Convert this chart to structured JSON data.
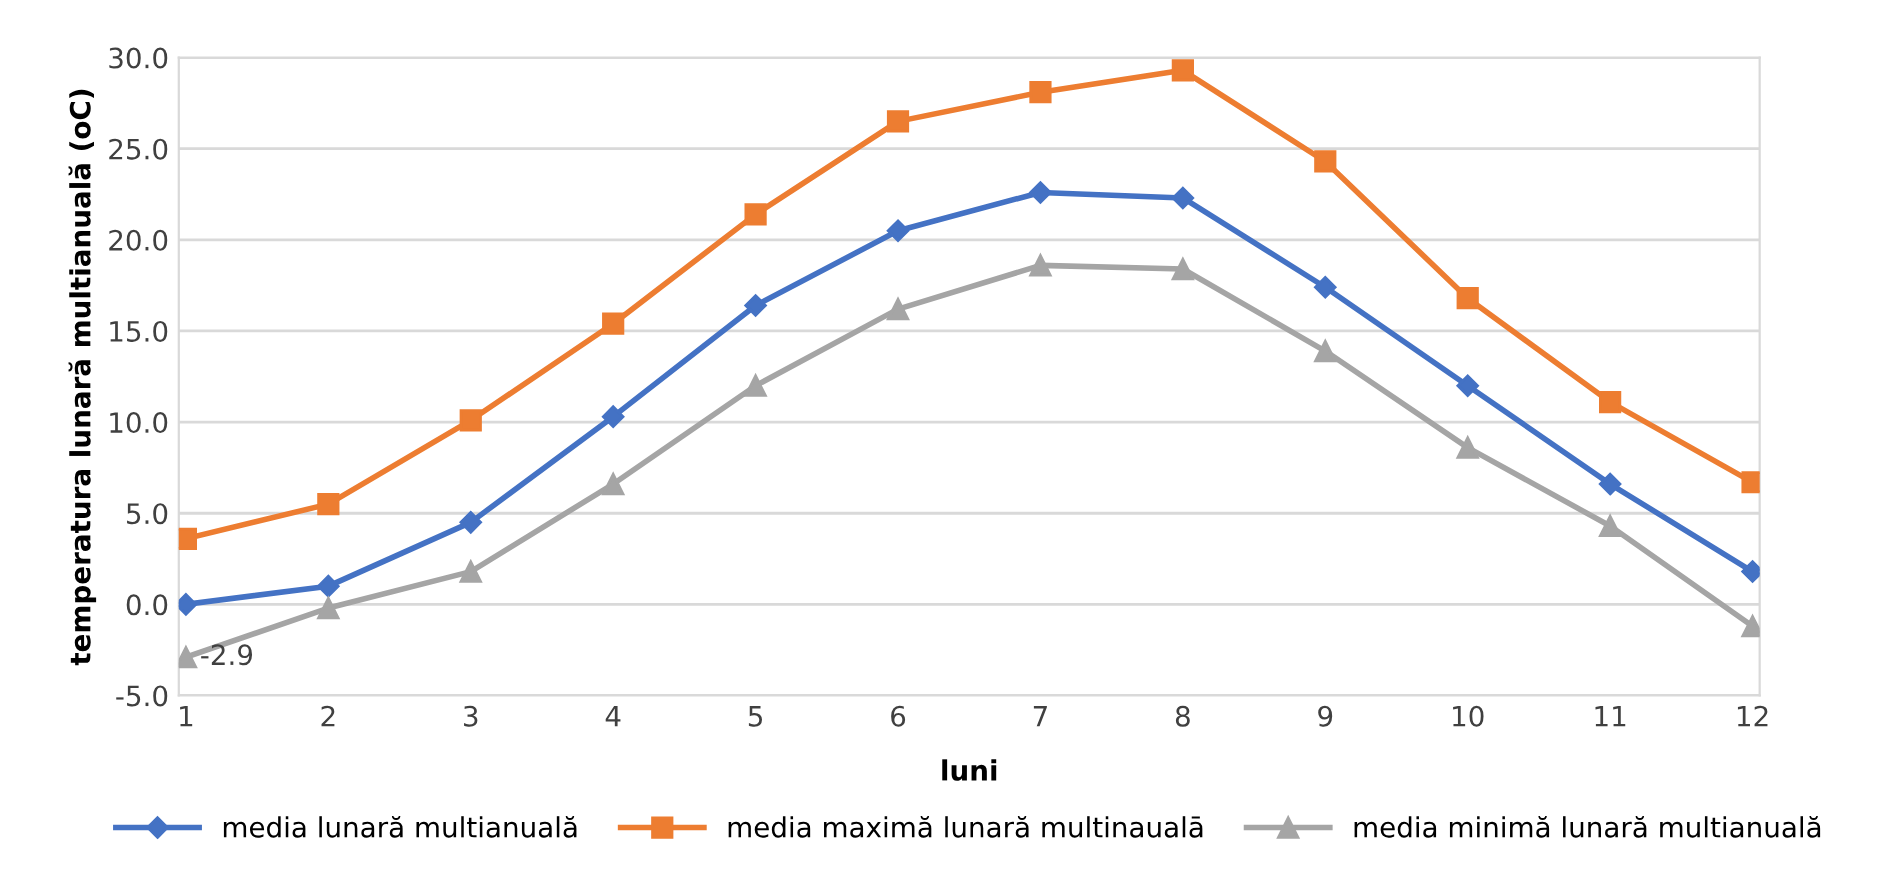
{
  "chart_data": {
    "type": "line",
    "xlabel": "luni",
    "ylabel": "temperatura lunară multianuală (oC)",
    "categories": [
      "1",
      "2",
      "3",
      "4",
      "5",
      "6",
      "7",
      "8",
      "9",
      "10",
      "11",
      "12"
    ],
    "series": [
      {
        "name": "media lunară multianuală",
        "color": "#4472c4",
        "marker": "diamond",
        "values": [
          0.0,
          1.0,
          4.5,
          10.3,
          16.4,
          20.5,
          22.6,
          22.3,
          17.4,
          12.0,
          6.6,
          1.8
        ]
      },
      {
        "name": "media maximă lunară multinaualā",
        "color": "#ed7d31",
        "marker": "square",
        "values": [
          3.6,
          5.5,
          10.1,
          15.4,
          21.4,
          26.5,
          28.1,
          29.3,
          24.3,
          16.8,
          11.1,
          6.7
        ]
      },
      {
        "name": "media minimă lunară multianuală",
        "color": "#a5a5a5",
        "marker": "triangle",
        "values": [
          -2.9,
          -0.2,
          1.8,
          6.6,
          12.0,
          16.2,
          18.6,
          18.4,
          13.9,
          8.6,
          4.3,
          -1.2
        ],
        "value_labels": [
          "-2.9",
          null,
          null,
          null,
          null,
          null,
          null,
          null,
          null,
          null,
          null,
          null
        ]
      }
    ],
    "ylim": [
      -5,
      30
    ],
    "yticks": [
      {
        "value": -5,
        "label": "-5.0"
      },
      {
        "value": 0,
        "label": "0.0"
      },
      {
        "value": 5,
        "label": "5.0"
      },
      {
        "value": 10,
        "label": "10.0"
      },
      {
        "value": 15,
        "label": "15.0"
      },
      {
        "value": 20,
        "label": "20.0"
      },
      {
        "value": 25,
        "label": "25.0"
      },
      {
        "value": 30,
        "label": "30.0"
      }
    ],
    "grid": "y",
    "legend": "bottom"
  }
}
